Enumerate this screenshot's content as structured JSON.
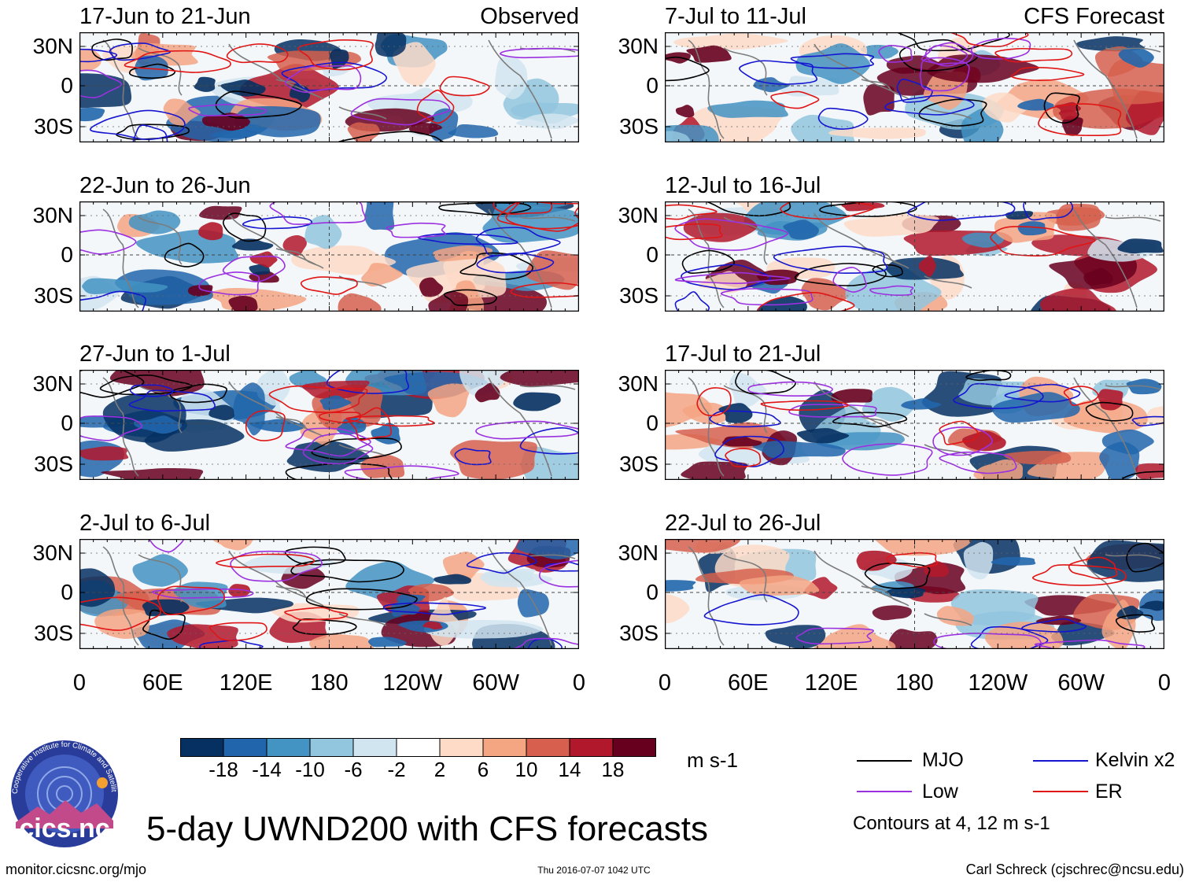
{
  "chart_data": {
    "type": "heatmap",
    "title": "5-day UWND200 with CFS forecasts",
    "variable": "200-hPa zonal wind anomaly",
    "units": "m s-1",
    "x_ticks": [
      "0",
      "60E",
      "120E",
      "180",
      "120W",
      "60W",
      "0"
    ],
    "y_ticks": [
      "30N",
      "0",
      "30S"
    ],
    "columns": [
      {
        "label": "Observed",
        "periods": [
          "17-Jun to 21-Jun",
          "22-Jun to 26-Jun",
          "27-Jun to 1-Jul",
          "2-Jul to 6-Jul"
        ]
      },
      {
        "label": "CFS Forecast",
        "periods": [
          "7-Jul to 11-Jul",
          "12-Jul to 16-Jul",
          "17-Jul to 21-Jul",
          "22-Jul to 26-Jul"
        ]
      }
    ],
    "colorbar": {
      "levels": [
        -18,
        -14,
        -10,
        -6,
        -2,
        2,
        6,
        10,
        14,
        18
      ],
      "level_labels": [
        "-18",
        "-14",
        "-10",
        "-6",
        "-2",
        "2",
        "6",
        "10",
        "14",
        "18"
      ],
      "colors": [
        "#053061",
        "#2166ac",
        "#4393c3",
        "#92c5de",
        "#d1e5f0",
        "#ffffff",
        "#fddbc7",
        "#f4a582",
        "#d6604d",
        "#b2182b",
        "#67001f"
      ]
    },
    "contour_legend": [
      {
        "label": "MJO",
        "color": "#000000"
      },
      {
        "label": "Kelvin x2",
        "color": "#1515d0"
      },
      {
        "label": "Low",
        "color": "#9b30e0"
      },
      {
        "label": "ER",
        "color": "#e01515"
      }
    ],
    "contour_note": "Contours at 4, 12 m s-1"
  },
  "footer": {
    "url": "monitor.cicsnc.org/mjo",
    "timestamp": "Thu 2016-07-07 1042 UTC",
    "author": "Carl Schreck (cjschrec@ncsu.edu)"
  },
  "logo": {
    "text": "cics.nc",
    "ring_text": "Cooperative Institute for Climate and Satellites"
  }
}
